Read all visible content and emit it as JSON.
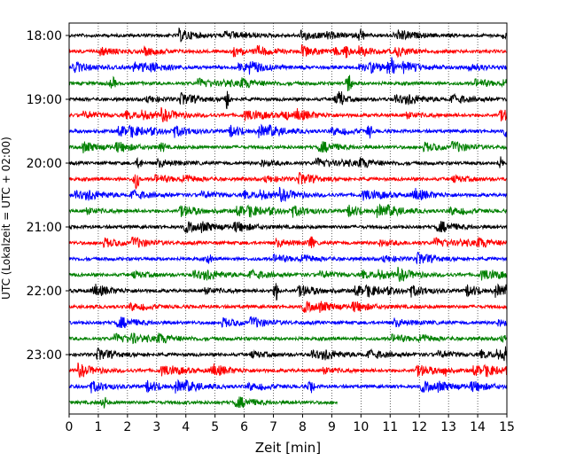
{
  "chart_data": {
    "type": "line",
    "title": "",
    "xlabel": "Zeit  [min]",
    "ylabel": "UTC (Lokalzeit = UTC + 02:00)",
    "xlim": [
      0,
      15
    ],
    "x_ticks": [
      "0",
      "1",
      "2",
      "3",
      "4",
      "5",
      "6",
      "7",
      "8",
      "9",
      "10",
      "11",
      "12",
      "13",
      "14",
      "15"
    ],
    "y_ticks": [
      "18:00",
      "19:00",
      "20:00",
      "21:00",
      "22:00",
      "23:00"
    ],
    "grid": "vertical dotted",
    "trace_interval_min": 15,
    "series": [
      {
        "start": "18:00",
        "color": "#000000",
        "end_min": 15,
        "events": [
          {
            "t": 10.0,
            "amp": 0.5
          }
        ]
      },
      {
        "start": "18:15",
        "color": "#ff0000",
        "end_min": 15,
        "events": [
          {
            "t": 9.5,
            "amp": 0.4
          }
        ]
      },
      {
        "start": "18:30",
        "color": "#0000ff",
        "end_min": 15,
        "events": [
          {
            "t": 11.0,
            "amp": 1.0
          }
        ]
      },
      {
        "start": "18:45",
        "color": "#008000",
        "end_min": 15,
        "events": [
          {
            "t": 9.6,
            "amp": 0.8
          },
          {
            "t": 1.5,
            "amp": 0.4
          }
        ]
      },
      {
        "start": "19:00",
        "color": "#000000",
        "end_min": 15,
        "events": [
          {
            "t": 5.4,
            "amp": 0.7
          },
          {
            "t": 9.3,
            "amp": 0.5
          }
        ]
      },
      {
        "start": "19:15",
        "color": "#ff0000",
        "end_min": 15,
        "events": [
          {
            "t": 7.4,
            "amp": 0.4
          }
        ]
      },
      {
        "start": "19:30",
        "color": "#0000ff",
        "end_min": 15,
        "events": [
          {
            "t": 10.3,
            "amp": 0.4
          }
        ]
      },
      {
        "start": "19:45",
        "color": "#008000",
        "end_min": 15,
        "events": [
          {
            "t": 3.2,
            "amp": 0.3
          }
        ]
      },
      {
        "start": "20:00",
        "color": "#000000",
        "end_min": 15,
        "events": [
          {
            "t": 2.4,
            "amp": 0.4
          },
          {
            "t": 14.8,
            "amp": 0.4
          }
        ]
      },
      {
        "start": "20:15",
        "color": "#ff0000",
        "end_min": 15,
        "events": [
          {
            "t": 2.3,
            "amp": 0.7
          }
        ]
      },
      {
        "start": "20:30",
        "color": "#0000ff",
        "end_min": 15,
        "events": []
      },
      {
        "start": "20:45",
        "color": "#008000",
        "end_min": 15,
        "events": []
      },
      {
        "start": "21:00",
        "color": "#000000",
        "end_min": 15,
        "events": []
      },
      {
        "start": "21:15",
        "color": "#ff0000",
        "end_min": 15,
        "events": [
          {
            "t": 8.3,
            "amp": 0.4
          }
        ]
      },
      {
        "start": "21:30",
        "color": "#0000ff",
        "end_min": 15,
        "events": [
          {
            "t": 4.8,
            "amp": 0.3
          }
        ]
      },
      {
        "start": "21:45",
        "color": "#008000",
        "end_min": 15,
        "events": []
      },
      {
        "start": "22:00",
        "color": "#000000",
        "end_min": 15,
        "events": [
          {
            "t": 7.1,
            "amp": 0.6
          }
        ]
      },
      {
        "start": "22:15",
        "color": "#ff0000",
        "end_min": 15,
        "events": []
      },
      {
        "start": "22:30",
        "color": "#0000ff",
        "end_min": 15,
        "events": []
      },
      {
        "start": "22:45",
        "color": "#008000",
        "end_min": 15,
        "events": [
          {
            "t": 2.2,
            "amp": 0.3
          }
        ]
      },
      {
        "start": "23:00",
        "color": "#000000",
        "end_min": 15,
        "events": [
          {
            "t": 15.0,
            "amp": 0.5
          }
        ]
      },
      {
        "start": "23:15",
        "color": "#ff0000",
        "end_min": 15,
        "events": [
          {
            "t": 12.9,
            "amp": 0.3
          }
        ]
      },
      {
        "start": "23:30",
        "color": "#0000ff",
        "end_min": 15,
        "events": [
          {
            "t": 8.3,
            "amp": 0.5
          }
        ]
      },
      {
        "start": "23:45",
        "color": "#008000",
        "end_min": 9.2,
        "events": [
          {
            "t": 1.2,
            "amp": 0.4
          }
        ]
      }
    ]
  }
}
